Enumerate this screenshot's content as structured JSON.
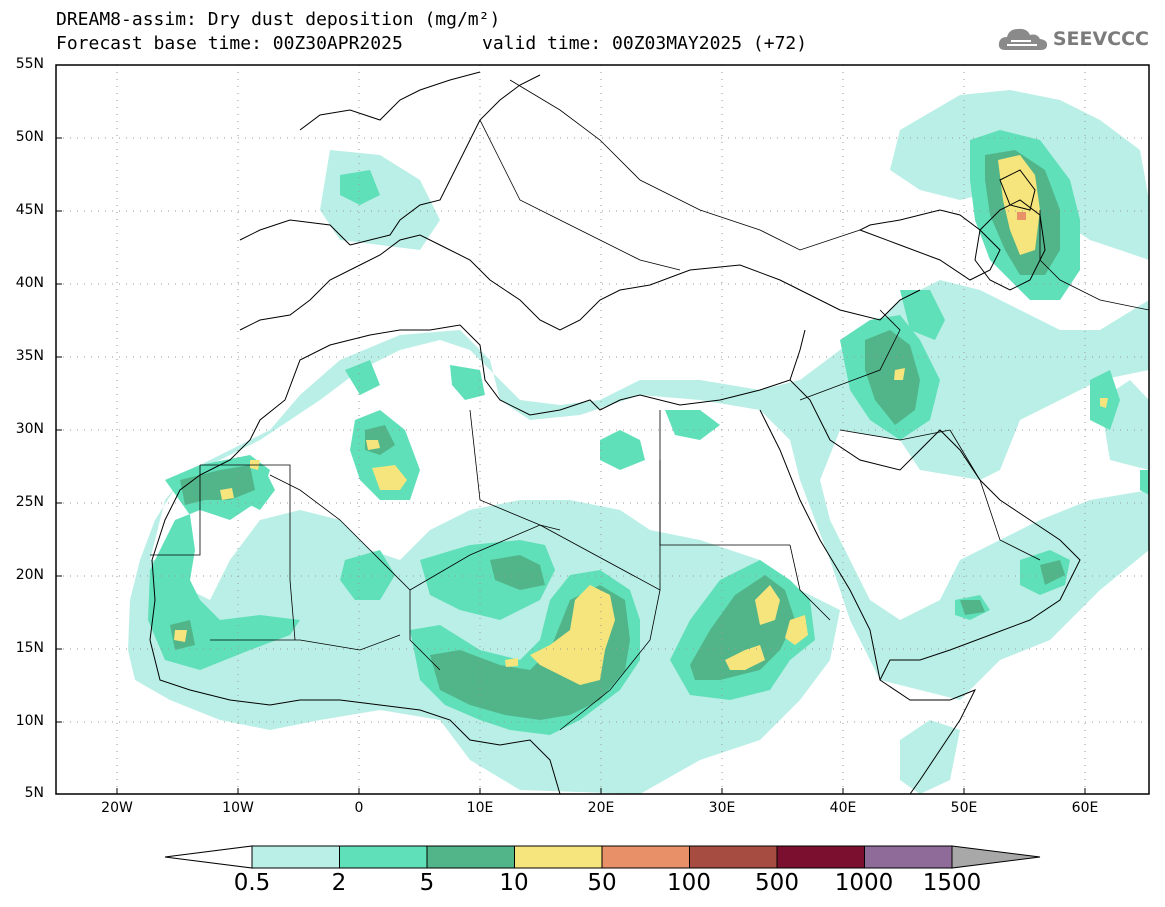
{
  "header": {
    "title_line1": "DREAM8-assim: Dry dust deposition (mg/m²)",
    "title_line2_left": "Forecast base time: 00Z30APR2025",
    "title_line2_right": "valid time: 00Z03MAY2025 (+72)",
    "logo_text": "SEEVCCC",
    "logo_icon": "cloud-icon"
  },
  "map": {
    "region": "North Africa, Europe and Middle East",
    "lon_range": [
      -25,
      65
    ],
    "lat_range": [
      5,
      55
    ],
    "lat_labels": [
      "55N",
      "50N",
      "45N",
      "40N",
      "35N",
      "30N",
      "25N",
      "20N",
      "15N",
      "10N",
      "5N"
    ],
    "lon_labels": [
      "20W",
      "10W",
      "0",
      "10E",
      "20E",
      "30E",
      "40E",
      "50E",
      "60E"
    ],
    "grid": "dotted"
  },
  "colorbar": {
    "labels": [
      "0.5",
      "2",
      "5",
      "10",
      "50",
      "100",
      "500",
      "1000",
      "1500"
    ],
    "colors": [
      "#b9efe6",
      "#5fe0b9",
      "#52b58a",
      "#f5e57c",
      "#e89067",
      "#a74c41",
      "#7b0f30",
      "#8f6b9a"
    ],
    "under_color": "#ffffff",
    "over_color": "#a8a8a8"
  }
}
